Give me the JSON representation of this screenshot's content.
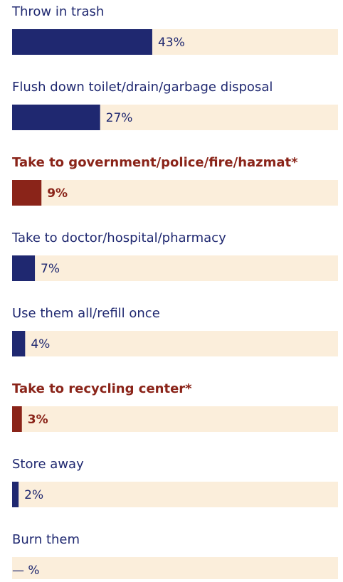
{
  "chart_data": {
    "type": "bar",
    "orientation": "horizontal",
    "categories": [
      "Throw in trash",
      "Flush down toilet/drain/garbage disposal",
      "Take to government/police/fire/hazmat*",
      "Take to doctor/hospital/pharmacy",
      "Use them all/refill once",
      "Take to recycling center*",
      "Store away",
      "Burn them"
    ],
    "values": [
      43,
      27,
      9,
      7,
      4,
      3,
      2,
      null
    ],
    "value_labels": [
      "43%",
      "27%",
      "9%",
      "7%",
      "4%",
      "3%",
      "2%",
      "— %"
    ],
    "highlighted": [
      false,
      false,
      true,
      false,
      false,
      true,
      false,
      false
    ],
    "color": "#1f2870",
    "highlight_color": "#8a2419",
    "track_color": "#fbeedb",
    "xlim": [
      0,
      100
    ]
  }
}
